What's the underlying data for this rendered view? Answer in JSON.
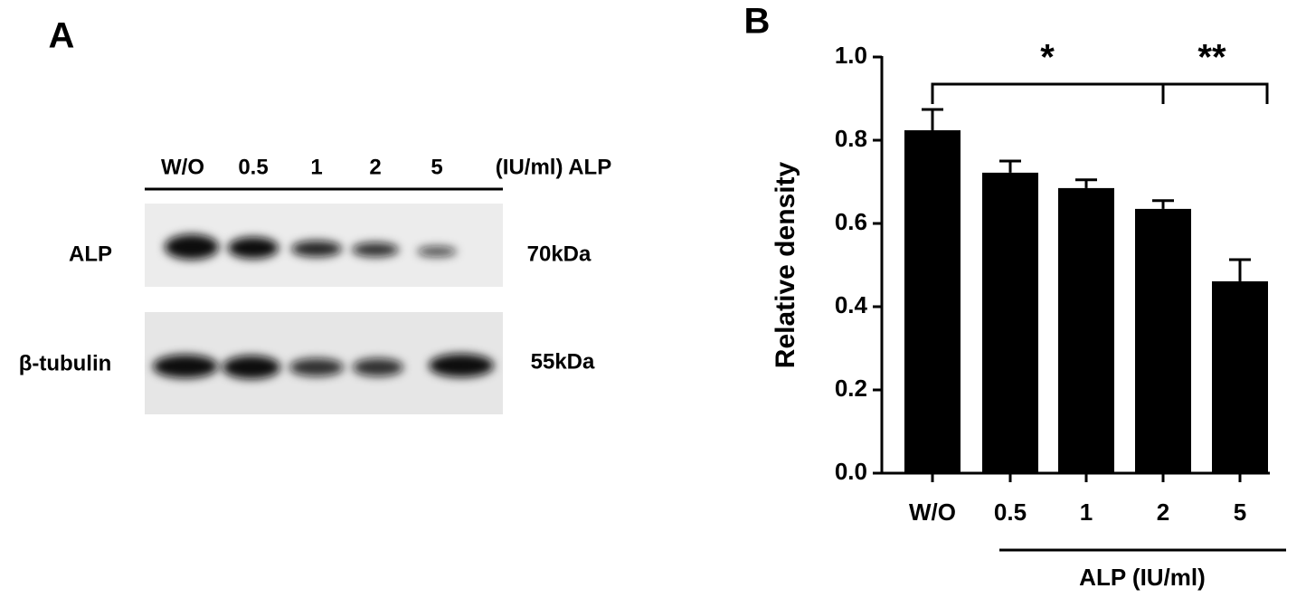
{
  "panel_a": {
    "label": "A",
    "lanes": [
      "W/O",
      "0.5",
      "1",
      "2",
      "5"
    ],
    "unit": "(IU/ml) ALP",
    "rows": [
      {
        "name": "ALP",
        "size": "70kDa"
      },
      {
        "name": "β-tubulin",
        "size": "55kDa"
      }
    ]
  },
  "chart_data": {
    "type": "bar",
    "panel_label": "B",
    "y_label": "Relative density",
    "x_label": "ALP (IU/ml)",
    "categories": [
      "W/O",
      "0.5",
      "1",
      "2",
      "5"
    ],
    "values": [
      0.824,
      0.722,
      0.685,
      0.635,
      0.461
    ],
    "errors": [
      0.05,
      0.028,
      0.02,
      0.02,
      0.052
    ],
    "color": "#000000",
    "ylim": [
      0,
      1
    ],
    "yticks": [
      {
        "value": 0,
        "label": "0.0"
      },
      0.2,
      0.4,
      0.6,
      0.8,
      {
        "value": 1,
        "label": "1.0"
      }
    ],
    "annotations": [
      "*",
      "**"
    ]
  }
}
